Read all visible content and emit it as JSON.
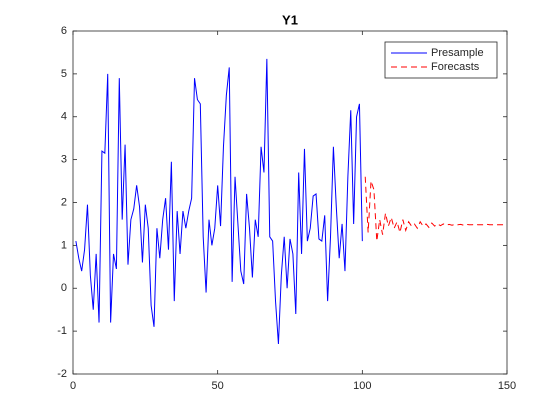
{
  "chart_data": {
    "type": "line",
    "title": "Y1",
    "xlim": [
      0,
      150
    ],
    "xticks": [
      0,
      50,
      100,
      150
    ],
    "ylim": [
      -2,
      6
    ],
    "yticks": [
      -2,
      -1,
      0,
      1,
      2,
      3,
      4,
      5,
      6
    ],
    "legend": "northeast",
    "series": [
      {
        "name": "Presample",
        "color": "#0000ff",
        "linestyle": "solid",
        "x": [
          1,
          2,
          3,
          4,
          5,
          6,
          7,
          8,
          9,
          10,
          11,
          12,
          13,
          14,
          15,
          16,
          17,
          18,
          19,
          20,
          21,
          22,
          23,
          24,
          25,
          26,
          27,
          28,
          29,
          30,
          31,
          32,
          33,
          34,
          35,
          36,
          37,
          38,
          39,
          40,
          41,
          42,
          43,
          44,
          45,
          46,
          47,
          48,
          49,
          50,
          51,
          52,
          53,
          54,
          55,
          56,
          57,
          58,
          59,
          60,
          61,
          62,
          63,
          64,
          65,
          66,
          67,
          68,
          69,
          70,
          71,
          72,
          73,
          74,
          75,
          76,
          77,
          78,
          79,
          80,
          81,
          82,
          83,
          84,
          85,
          86,
          87,
          88,
          89,
          90,
          91,
          92,
          93,
          94,
          95,
          96,
          97,
          98,
          99,
          100
        ],
        "values": [
          1.1,
          0.7,
          0.4,
          0.9,
          1.95,
          0.3,
          -0.5,
          0.8,
          -0.8,
          3.2,
          3.15,
          5.0,
          -0.8,
          0.8,
          0.45,
          4.9,
          1.6,
          3.35,
          0.55,
          1.6,
          1.85,
          2.4,
          1.9,
          0.6,
          1.95,
          1.4,
          -0.4,
          -0.9,
          1.4,
          0.7,
          1.6,
          2.1,
          0.9,
          2.95,
          -0.3,
          1.8,
          0.8,
          1.8,
          1.4,
          1.8,
          2.1,
          4.9,
          4.4,
          4.3,
          1.2,
          -0.1,
          1.6,
          1.0,
          1.4,
          2.4,
          1.45,
          3.3,
          4.5,
          5.15,
          0.15,
          2.6,
          1.5,
          0.4,
          0.1,
          2.2,
          1.4,
          0.25,
          1.6,
          1.2,
          3.3,
          2.7,
          5.35,
          1.2,
          1.1,
          -0.3,
          -1.3,
          0.3,
          1.2,
          0.0,
          1.15,
          0.8,
          -0.6,
          2.7,
          0.8,
          3.25,
          1.1,
          1.4,
          2.15,
          2.2,
          1.15,
          1.1,
          1.7,
          -0.3,
          1.2,
          3.3,
          1.9,
          0.7,
          1.5,
          0.4,
          2.6,
          4.15,
          1.5,
          4.0,
          4.3,
          1.1
        ]
      },
      {
        "name": "Forecasts",
        "color": "#ff0000",
        "linestyle": "dashed",
        "x": [
          101,
          102,
          103,
          104,
          105,
          106,
          107,
          108,
          109,
          110,
          111,
          112,
          113,
          114,
          115,
          116,
          117,
          118,
          119,
          120,
          121,
          122,
          123,
          124,
          125,
          126,
          127,
          128,
          129,
          130,
          131,
          132,
          133,
          134,
          135,
          136,
          137,
          138,
          139,
          140,
          141,
          142,
          143,
          144,
          145,
          146,
          147,
          148,
          149,
          150
        ],
        "values": [
          2.6,
          1.3,
          2.5,
          2.3,
          1.1,
          1.6,
          1.25,
          1.75,
          1.45,
          1.65,
          1.4,
          1.55,
          1.3,
          1.6,
          1.35,
          1.55,
          1.45,
          1.5,
          1.4,
          1.55,
          1.45,
          1.5,
          1.42,
          1.52,
          1.45,
          1.5,
          1.46,
          1.5,
          1.47,
          1.49,
          1.47,
          1.49,
          1.48,
          1.49,
          1.47,
          1.49,
          1.48,
          1.48,
          1.49,
          1.48,
          1.48,
          1.48,
          1.49,
          1.48,
          1.48,
          1.48,
          1.48,
          1.48,
          1.48,
          1.48
        ]
      }
    ]
  }
}
